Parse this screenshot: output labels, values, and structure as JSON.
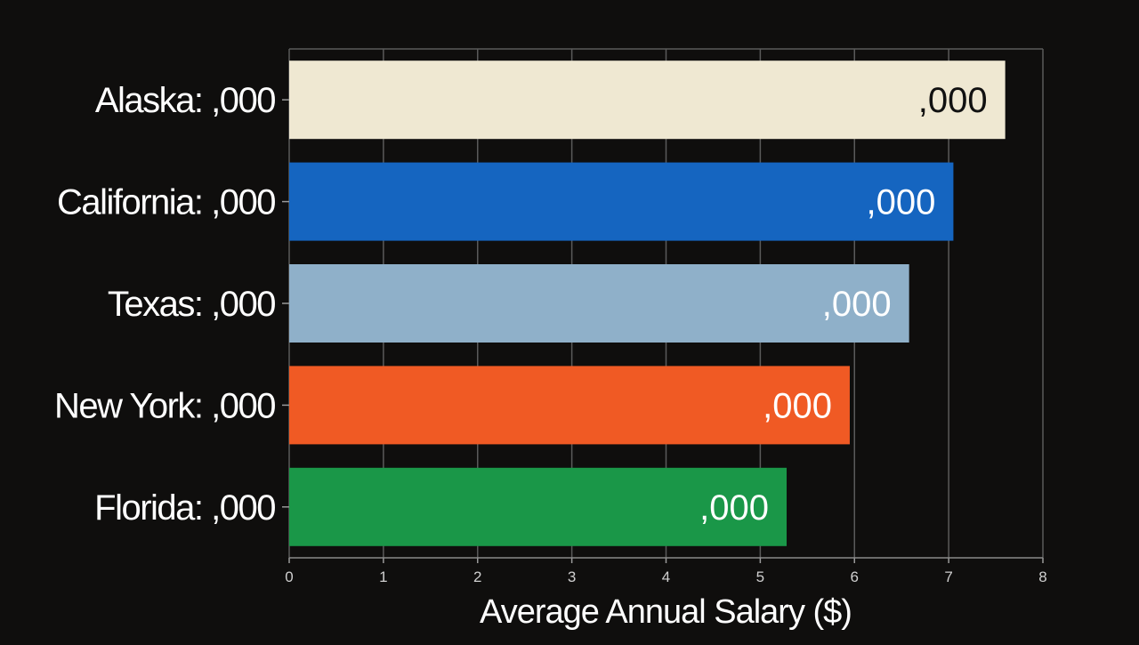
{
  "chart_data": {
    "type": "bar",
    "orientation": "horizontal",
    "categories": [
      "Alaska: ,000",
      "California: ,000",
      "Texas: ,000",
      "New York: ,000",
      "Florida: ,000"
    ],
    "values": [
      7.6,
      7.05,
      6.58,
      5.95,
      5.28
    ],
    "value_labels": [
      ",000",
      ",000",
      ",000",
      ",000",
      ",000"
    ],
    "bar_colors": [
      "#efe8d2",
      "#1565c0",
      "#8fb0c9",
      "#f05a24",
      "#1a9748"
    ],
    "value_label_colors": [
      "#111111",
      "#ffffff",
      "#ffffff",
      "#ffffff",
      "#ffffff"
    ],
    "xlabel": "Average Annual Salary ($)",
    "ylabel": "",
    "title": "",
    "xlim": [
      0,
      8
    ],
    "xticks": [
      "0",
      "1",
      "2",
      "3",
      "4",
      "5",
      "6",
      "7",
      "8"
    ],
    "grid": true,
    "legend": "none",
    "background": "#0f0e0d"
  }
}
